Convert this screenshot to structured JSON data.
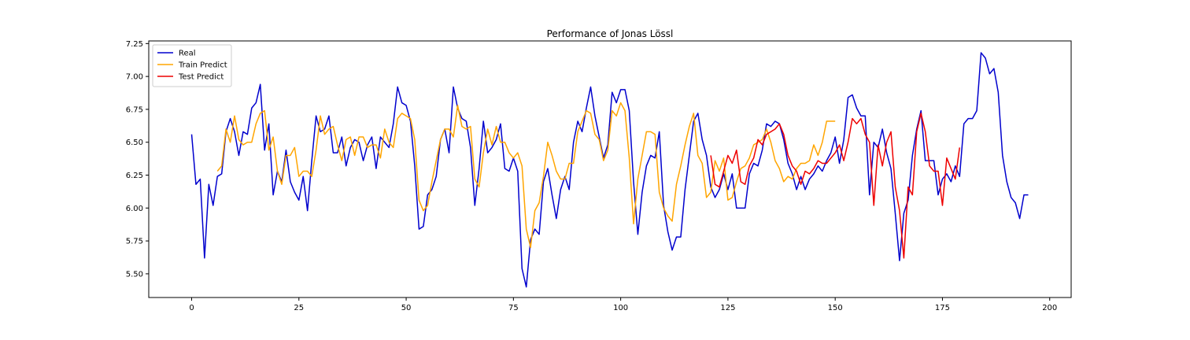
{
  "chart_data": {
    "type": "line",
    "title": "Performance of Jonas Lössl",
    "xlabel": "",
    "ylabel": "",
    "xlim": [
      -10,
      205
    ],
    "ylim": [
      5.32,
      7.27
    ],
    "xticks": [
      0,
      25,
      50,
      75,
      100,
      125,
      150,
      175,
      200
    ],
    "yticks": [
      5.5,
      5.75,
      6.0,
      6.25,
      6.5,
      6.75,
      7.0,
      7.25
    ],
    "ytick_labels": [
      "5.50",
      "5.75",
      "6.00",
      "6.25",
      "6.50",
      "6.75",
      "7.00",
      "7.25"
    ],
    "grid": false,
    "legend_position": "upper-left",
    "series": [
      {
        "name": "Real",
        "color": "#0000cd",
        "x_start": 0,
        "values": [
          6.56,
          6.18,
          6.22,
          5.62,
          6.18,
          6.02,
          6.24,
          6.26,
          6.58,
          6.68,
          6.58,
          6.4,
          6.58,
          6.56,
          6.76,
          6.8,
          6.94,
          6.44,
          6.64,
          6.1,
          6.28,
          6.2,
          6.44,
          6.2,
          6.12,
          6.06,
          6.24,
          5.98,
          6.36,
          6.7,
          6.58,
          6.6,
          6.7,
          6.42,
          6.42,
          6.54,
          6.32,
          6.46,
          6.52,
          6.5,
          6.36,
          6.48,
          6.54,
          6.3,
          6.54,
          6.5,
          6.46,
          6.64,
          6.92,
          6.8,
          6.78,
          6.66,
          6.32,
          5.84,
          5.86,
          6.1,
          6.14,
          6.24,
          6.52,
          6.6,
          6.42,
          6.92,
          6.76,
          6.68,
          6.66,
          6.46,
          6.02,
          6.3,
          6.66,
          6.42,
          6.46,
          6.52,
          6.64,
          6.3,
          6.28,
          6.38,
          6.28,
          5.54,
          5.4,
          5.76,
          5.84,
          5.8,
          6.2,
          6.3,
          6.1,
          5.92,
          6.14,
          6.24,
          6.14,
          6.5,
          6.66,
          6.58,
          6.76,
          6.92,
          6.7,
          6.54,
          6.38,
          6.48,
          6.88,
          6.8,
          6.9,
          6.9,
          6.74,
          6.2,
          5.8,
          6.12,
          6.32,
          6.4,
          6.38,
          6.58,
          6.02,
          5.82,
          5.68,
          5.78,
          5.78,
          6.14,
          6.4,
          6.66,
          6.72,
          6.52,
          6.4,
          6.16,
          6.08,
          6.14,
          6.26,
          6.14,
          6.26,
          6.0,
          6.0,
          6.0,
          6.26,
          6.34,
          6.32,
          6.44,
          6.64,
          6.62,
          6.66,
          6.64,
          6.52,
          6.34,
          6.26,
          6.14,
          6.24,
          6.14,
          6.22,
          6.26,
          6.32,
          6.28,
          6.36,
          6.42,
          6.54,
          6.34,
          6.52,
          6.84,
          6.86,
          6.76,
          6.7,
          6.7,
          6.1,
          6.5,
          6.46,
          6.6,
          6.42,
          6.3,
          5.96,
          5.6,
          5.96,
          6.06,
          6.4,
          6.6,
          6.74,
          6.36,
          6.36,
          6.36,
          6.1,
          6.22,
          6.26,
          6.2,
          6.32,
          6.24,
          6.64,
          6.68,
          6.68,
          6.74,
          7.18,
          7.14,
          7.02,
          7.06,
          6.88,
          6.4,
          6.2,
          6.08,
          6.04,
          5.92,
          6.1,
          6.1
        ]
      },
      {
        "name": "Train Predict",
        "color": "#ffa500",
        "x_start": 6,
        "values": [
          6.28,
          6.32,
          6.6,
          6.5,
          6.7,
          6.52,
          6.48,
          6.5,
          6.5,
          6.64,
          6.72,
          6.74,
          6.44,
          6.54,
          6.28,
          6.18,
          6.4,
          6.4,
          6.46,
          6.24,
          6.28,
          6.28,
          6.24,
          6.44,
          6.7,
          6.56,
          6.6,
          6.62,
          6.48,
          6.36,
          6.52,
          6.54,
          6.4,
          6.54,
          6.54,
          6.46,
          6.48,
          6.48,
          6.38,
          6.6,
          6.5,
          6.46,
          6.68,
          6.72,
          6.7,
          6.68,
          6.52,
          6.06,
          5.98,
          6.02,
          6.2,
          6.36,
          6.52,
          6.6,
          6.6,
          6.54,
          6.78,
          6.62,
          6.6,
          6.62,
          6.22,
          6.16,
          6.42,
          6.6,
          6.48,
          6.62,
          6.5,
          6.5,
          6.42,
          6.38,
          6.42,
          6.32,
          5.84,
          5.7,
          5.98,
          6.04,
          6.24,
          6.5,
          6.4,
          6.28,
          6.22,
          6.22,
          6.34,
          6.34,
          6.58,
          6.66,
          6.74,
          6.72,
          6.56,
          6.52,
          6.36,
          6.44,
          6.74,
          6.7,
          6.8,
          6.74,
          6.38,
          5.88,
          6.22,
          6.4,
          6.58,
          6.58,
          6.56,
          6.12,
          6.0,
          5.94,
          5.9,
          6.18,
          6.32,
          6.48,
          6.62,
          6.72,
          6.4,
          6.34,
          6.08,
          6.12,
          6.36,
          6.28,
          6.38,
          6.06,
          6.08,
          6.2,
          6.3,
          6.32,
          6.38,
          6.48,
          6.5,
          6.52,
          6.6,
          6.5,
          6.36,
          6.3,
          6.2,
          6.24,
          6.22,
          6.3,
          6.34,
          6.34,
          6.36,
          6.48,
          6.4,
          6.5,
          6.66,
          6.66,
          6.66
        ]
      },
      {
        "name": "Test Predict",
        "color": "#ee0000",
        "x_start": 121,
        "values": [
          6.4,
          6.18,
          6.16,
          6.28,
          6.4,
          6.34,
          6.44,
          6.2,
          6.18,
          6.32,
          6.38,
          6.52,
          6.48,
          6.56,
          6.58,
          6.6,
          6.64,
          6.56,
          6.4,
          6.32,
          6.28,
          6.18,
          6.28,
          6.26,
          6.3,
          6.36,
          6.34,
          6.34,
          6.38,
          6.42,
          6.48,
          6.36,
          6.5,
          6.68,
          6.64,
          6.68,
          6.56,
          6.5,
          6.02,
          6.48,
          6.32,
          6.5,
          6.58,
          6.16,
          5.98,
          5.62,
          6.16,
          6.1,
          6.58,
          6.72,
          6.58,
          6.32,
          6.28,
          6.28,
          6.02,
          6.38,
          6.3,
          6.22,
          6.46
        ]
      }
    ]
  }
}
